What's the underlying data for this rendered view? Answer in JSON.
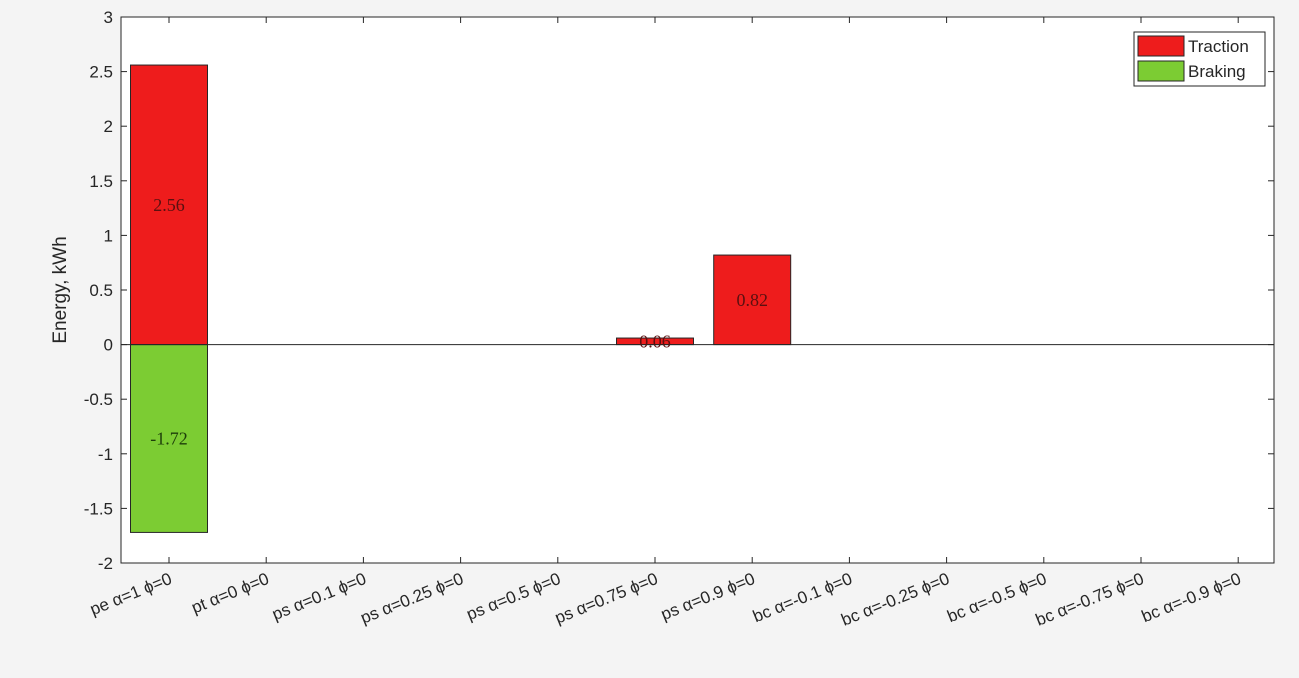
{
  "chart_data": {
    "type": "bar",
    "xlabel": "",
    "ylabel": "Energy, kWh",
    "ylim": [
      -2,
      3
    ],
    "yticks": [
      -2,
      -1.5,
      -1,
      -0.5,
      0,
      0.5,
      1,
      1.5,
      2,
      2.5,
      3
    ],
    "ytick_labels": [
      "-2",
      "-1.5",
      "-1",
      "-0.5",
      "0",
      "0.5",
      "1",
      "1.5",
      "2",
      "2.5",
      "3"
    ],
    "grid": false,
    "legend_position": "top-right",
    "categories": [
      "pe α=1 ϕ=0",
      "pt α=0 ϕ=0",
      "ps α=0.1 ϕ=0",
      "ps α=0.25 ϕ=0",
      "ps α=0.5 ϕ=0",
      "ps α=0.75 ϕ=0",
      "ps α=0.9 ϕ=0",
      "bc α=-0.1 ϕ=0",
      "bc α=-0.25 ϕ=0",
      "bc α=-0.5 ϕ=0",
      "bc α=-0.75 ϕ=0",
      "bc α=-0.9 ϕ=0"
    ],
    "series": [
      {
        "name": "Traction",
        "color": "#ee1c1c",
        "values": [
          2.56,
          0,
          0,
          0,
          0,
          0.06,
          0.82,
          0,
          0,
          0,
          0,
          0
        ],
        "labels": [
          "2.56",
          "",
          "",
          "",
          "",
          "0.06",
          "0.82",
          "",
          "",
          "",
          "",
          ""
        ]
      },
      {
        "name": "Braking",
        "color": "#7ccc33",
        "values": [
          -1.72,
          0,
          0,
          0,
          0,
          0,
          0,
          0,
          0,
          0,
          0,
          0
        ],
        "labels": [
          "-1.72",
          "",
          "",
          "",
          "",
          "",
          "",
          "",
          "",
          "",
          "",
          ""
        ]
      }
    ]
  }
}
